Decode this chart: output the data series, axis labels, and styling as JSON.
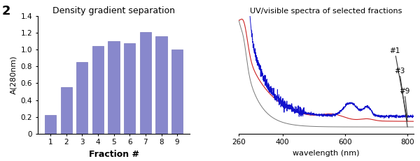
{
  "bar_values": [
    0.22,
    0.55,
    0.85,
    1.04,
    1.1,
    1.08,
    1.21,
    1.16,
    1.0
  ],
  "bar_color": "#8888cc",
  "bar_edgecolor": "#7777bb",
  "bar_categories": [
    1,
    2,
    3,
    4,
    5,
    6,
    7,
    8,
    9
  ],
  "bar_xlabel": "Fraction #",
  "bar_ylabel": "A(280nm)",
  "bar_title": "Density gradient separation",
  "bar_ylim": [
    0,
    1.4
  ],
  "bar_yticks": [
    0,
    0.2,
    0.4,
    0.6,
    0.8,
    1.0,
    1.2,
    1.4
  ],
  "figure_label": "2",
  "spectra_title": "UV/visible spectra of selected fractions",
  "spectra_xlabel": "wavelength (nm)",
  "spectra_xlim": [
    260,
    820
  ],
  "spectra_ylim": [
    -0.03,
    0.55
  ],
  "background_color": "#ffffff"
}
